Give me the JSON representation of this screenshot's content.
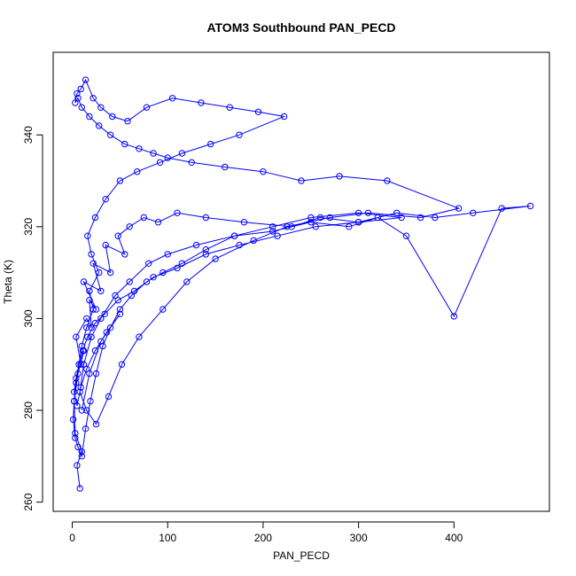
{
  "chart_data": {
    "type": "line",
    "title": "ATOM3 Southbound PAN_PECD",
    "xlabel": "PAN_PECD",
    "ylabel": "Theta (K)",
    "xlim": [
      -20,
      500
    ],
    "ylim": [
      258,
      358
    ],
    "x_ticks": [
      0,
      100,
      200,
      300,
      400
    ],
    "y_ticks": [
      260,
      280,
      300,
      320,
      340
    ],
    "x_tick_labels": [
      "0",
      "100",
      "200",
      "300",
      "400"
    ],
    "y_tick_labels": [
      "260",
      "280",
      "300",
      "320",
      "340"
    ],
    "series_color": "#0000ff",
    "marker": "open-circle",
    "grid": false,
    "series": [
      {
        "name": "PAN_PECD",
        "x": [
          8,
          5,
          10,
          3,
          2,
          6,
          12,
          9,
          4,
          15,
          20,
          18,
          25,
          12,
          30,
          22,
          40,
          35,
          55,
          48,
          60,
          75,
          90,
          110,
          140,
          180,
          230,
          260,
          300,
          340,
          380,
          420,
          480,
          450,
          400,
          350,
          320,
          290,
          250,
          210,
          170,
          130,
          100,
          80,
          60,
          45,
          30,
          20,
          12,
          8,
          15,
          25,
          38,
          52,
          70,
          95,
          120,
          150,
          190,
          225,
          270,
          310,
          365,
          405,
          330,
          280,
          240,
          200,
          160,
          125,
          100,
          85,
          70,
          55,
          40,
          28,
          18,
          10,
          6,
          3,
          5,
          9,
          14,
          22,
          30,
          42,
          58,
          78,
          105,
          135,
          165,
          195,
          222,
          175,
          145,
          115,
          92,
          68,
          50,
          35,
          24,
          16,
          20,
          28,
          18,
          22,
          15,
          10,
          7,
          4,
          2,
          1,
          3,
          6,
          10,
          14,
          19,
          25,
          32,
          40,
          50,
          62,
          78,
          95,
          115,
          140,
          170,
          210,
          250,
          300,
          345,
          300,
          255,
          215,
          175,
          140,
          110,
          85,
          65,
          48,
          34,
          24,
          16,
          11,
          7,
          4,
          2,
          5,
          9,
          15,
          24,
          36,
          50,
          30,
          18,
          10
        ],
        "y": [
          263,
          268,
          271,
          275,
          282,
          288,
          293,
          290,
          296,
          300,
          298,
          304,
          302,
          308,
          306,
          312,
          310,
          316,
          314,
          318,
          320,
          322,
          321,
          323,
          322,
          321,
          320,
          322,
          321,
          323,
          322,
          323,
          324.5,
          324,
          300.5,
          318,
          322,
          320,
          321,
          319,
          318,
          316,
          314,
          312,
          308,
          305,
          300,
          296,
          290,
          284,
          280,
          277,
          283,
          290,
          296,
          302,
          308,
          313,
          317,
          320,
          322,
          323,
          322,
          324,
          330,
          331,
          330,
          332,
          333,
          334,
          335,
          336,
          337,
          338,
          340,
          342,
          344,
          346,
          348,
          347,
          349,
          350,
          352,
          348,
          346,
          344,
          343,
          346,
          348,
          347,
          346,
          345,
          344,
          340,
          338,
          336,
          334,
          332,
          330,
          326,
          322,
          318,
          314,
          310,
          306,
          302,
          298,
          294,
          290,
          286,
          282,
          278,
          274,
          272,
          270,
          276,
          282,
          288,
          294,
          298,
          302,
          305,
          308,
          310,
          312,
          315,
          318,
          320,
          322,
          323,
          322,
          321,
          320,
          318,
          316,
          314,
          311,
          309,
          306,
          304,
          301,
          299,
          296,
          293,
          290,
          287,
          284,
          281,
          285,
          289,
          293,
          297,
          301,
          295,
          288,
          280
        ]
      }
    ]
  }
}
